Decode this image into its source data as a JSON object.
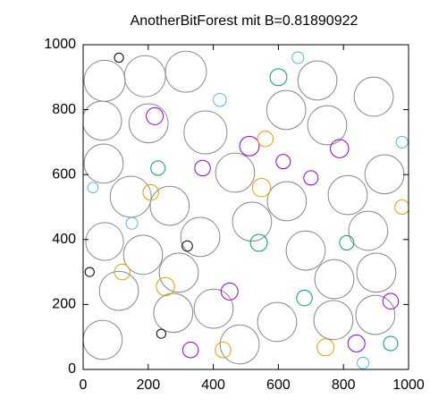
{
  "chart_data": {
    "type": "bubble",
    "title": "AnotherBitForest mit B=0.81890922",
    "xlim": [
      0,
      1000
    ],
    "ylim": [
      0,
      1000
    ],
    "xticks": [
      0,
      200,
      400,
      600,
      800,
      1000
    ],
    "yticks": [
      0,
      200,
      400,
      600,
      800,
      1000
    ],
    "series": [
      {
        "color": "#8c8c8c",
        "x": [
          66,
          190,
          316,
          58,
          201,
          376,
          624,
          720,
          750,
          893,
          467,
          63,
          146,
          266,
          626,
          813,
          926,
          519,
          360,
          66,
          184,
          294,
          684,
          876,
          110,
          277,
          401,
          772,
          901,
          60,
          481,
          596,
          769,
          898
        ],
        "values": [
          889,
          903,
          917,
          766,
          758,
          730,
          799,
          890,
          752,
          840,
          606,
          634,
          532,
          504,
          518,
          537,
          601,
          455,
          408,
          394,
          353,
          298,
          366,
          427,
          242,
          174,
          187,
          278,
          298,
          91,
          77,
          146,
          152,
          168
        ],
        "sizes": [
          63,
          63,
          63,
          60,
          60,
          66,
          60,
          60,
          60,
          60,
          60,
          60,
          63,
          60,
          60,
          60,
          60,
          60,
          60,
          58,
          60,
          60,
          60,
          60,
          60,
          60,
          60,
          60,
          60,
          60,
          60,
          60,
          60,
          60
        ]
      },
      {
        "color": "#9400d3",
        "x": [
          511,
          788,
          220,
          367,
          615,
          945,
          450,
          700,
          330,
          840
        ],
        "values": [
          688,
          680,
          780,
          620,
          640,
          210,
          240,
          590,
          60,
          80
        ],
        "sizes": [
          30,
          28,
          26,
          24,
          22,
          24,
          26,
          22,
          24,
          26
        ]
      },
      {
        "color": "#e69f00",
        "x": [
          548,
          253,
          208,
          745,
          980,
          430,
          560,
          120
        ],
        "values": [
          560,
          255,
          545,
          68,
          500,
          60,
          710,
          300
        ],
        "sizes": [
          28,
          28,
          24,
          26,
          22,
          24,
          24,
          24
        ]
      },
      {
        "color": "#009e73",
        "x": [
          600,
          680,
          945,
          540,
          810,
          230
        ],
        "values": [
          900,
          220,
          80,
          390,
          390,
          620
        ],
        "sizes": [
          26,
          24,
          22,
          26,
          22,
          22
        ]
      },
      {
        "color": "#56b4e9",
        "x": [
          980,
          420,
          660,
          150,
          30,
          860
        ],
        "values": [
          700,
          830,
          960,
          450,
          560,
          20
        ],
        "sizes": [
          18,
          20,
          18,
          18,
          16,
          18
        ]
      },
      {
        "color": "#000000",
        "x": [
          20,
          320,
          110,
          240
        ],
        "values": [
          300,
          380,
          960,
          110
        ],
        "sizes": [
          14,
          16,
          14,
          14
        ]
      }
    ]
  }
}
